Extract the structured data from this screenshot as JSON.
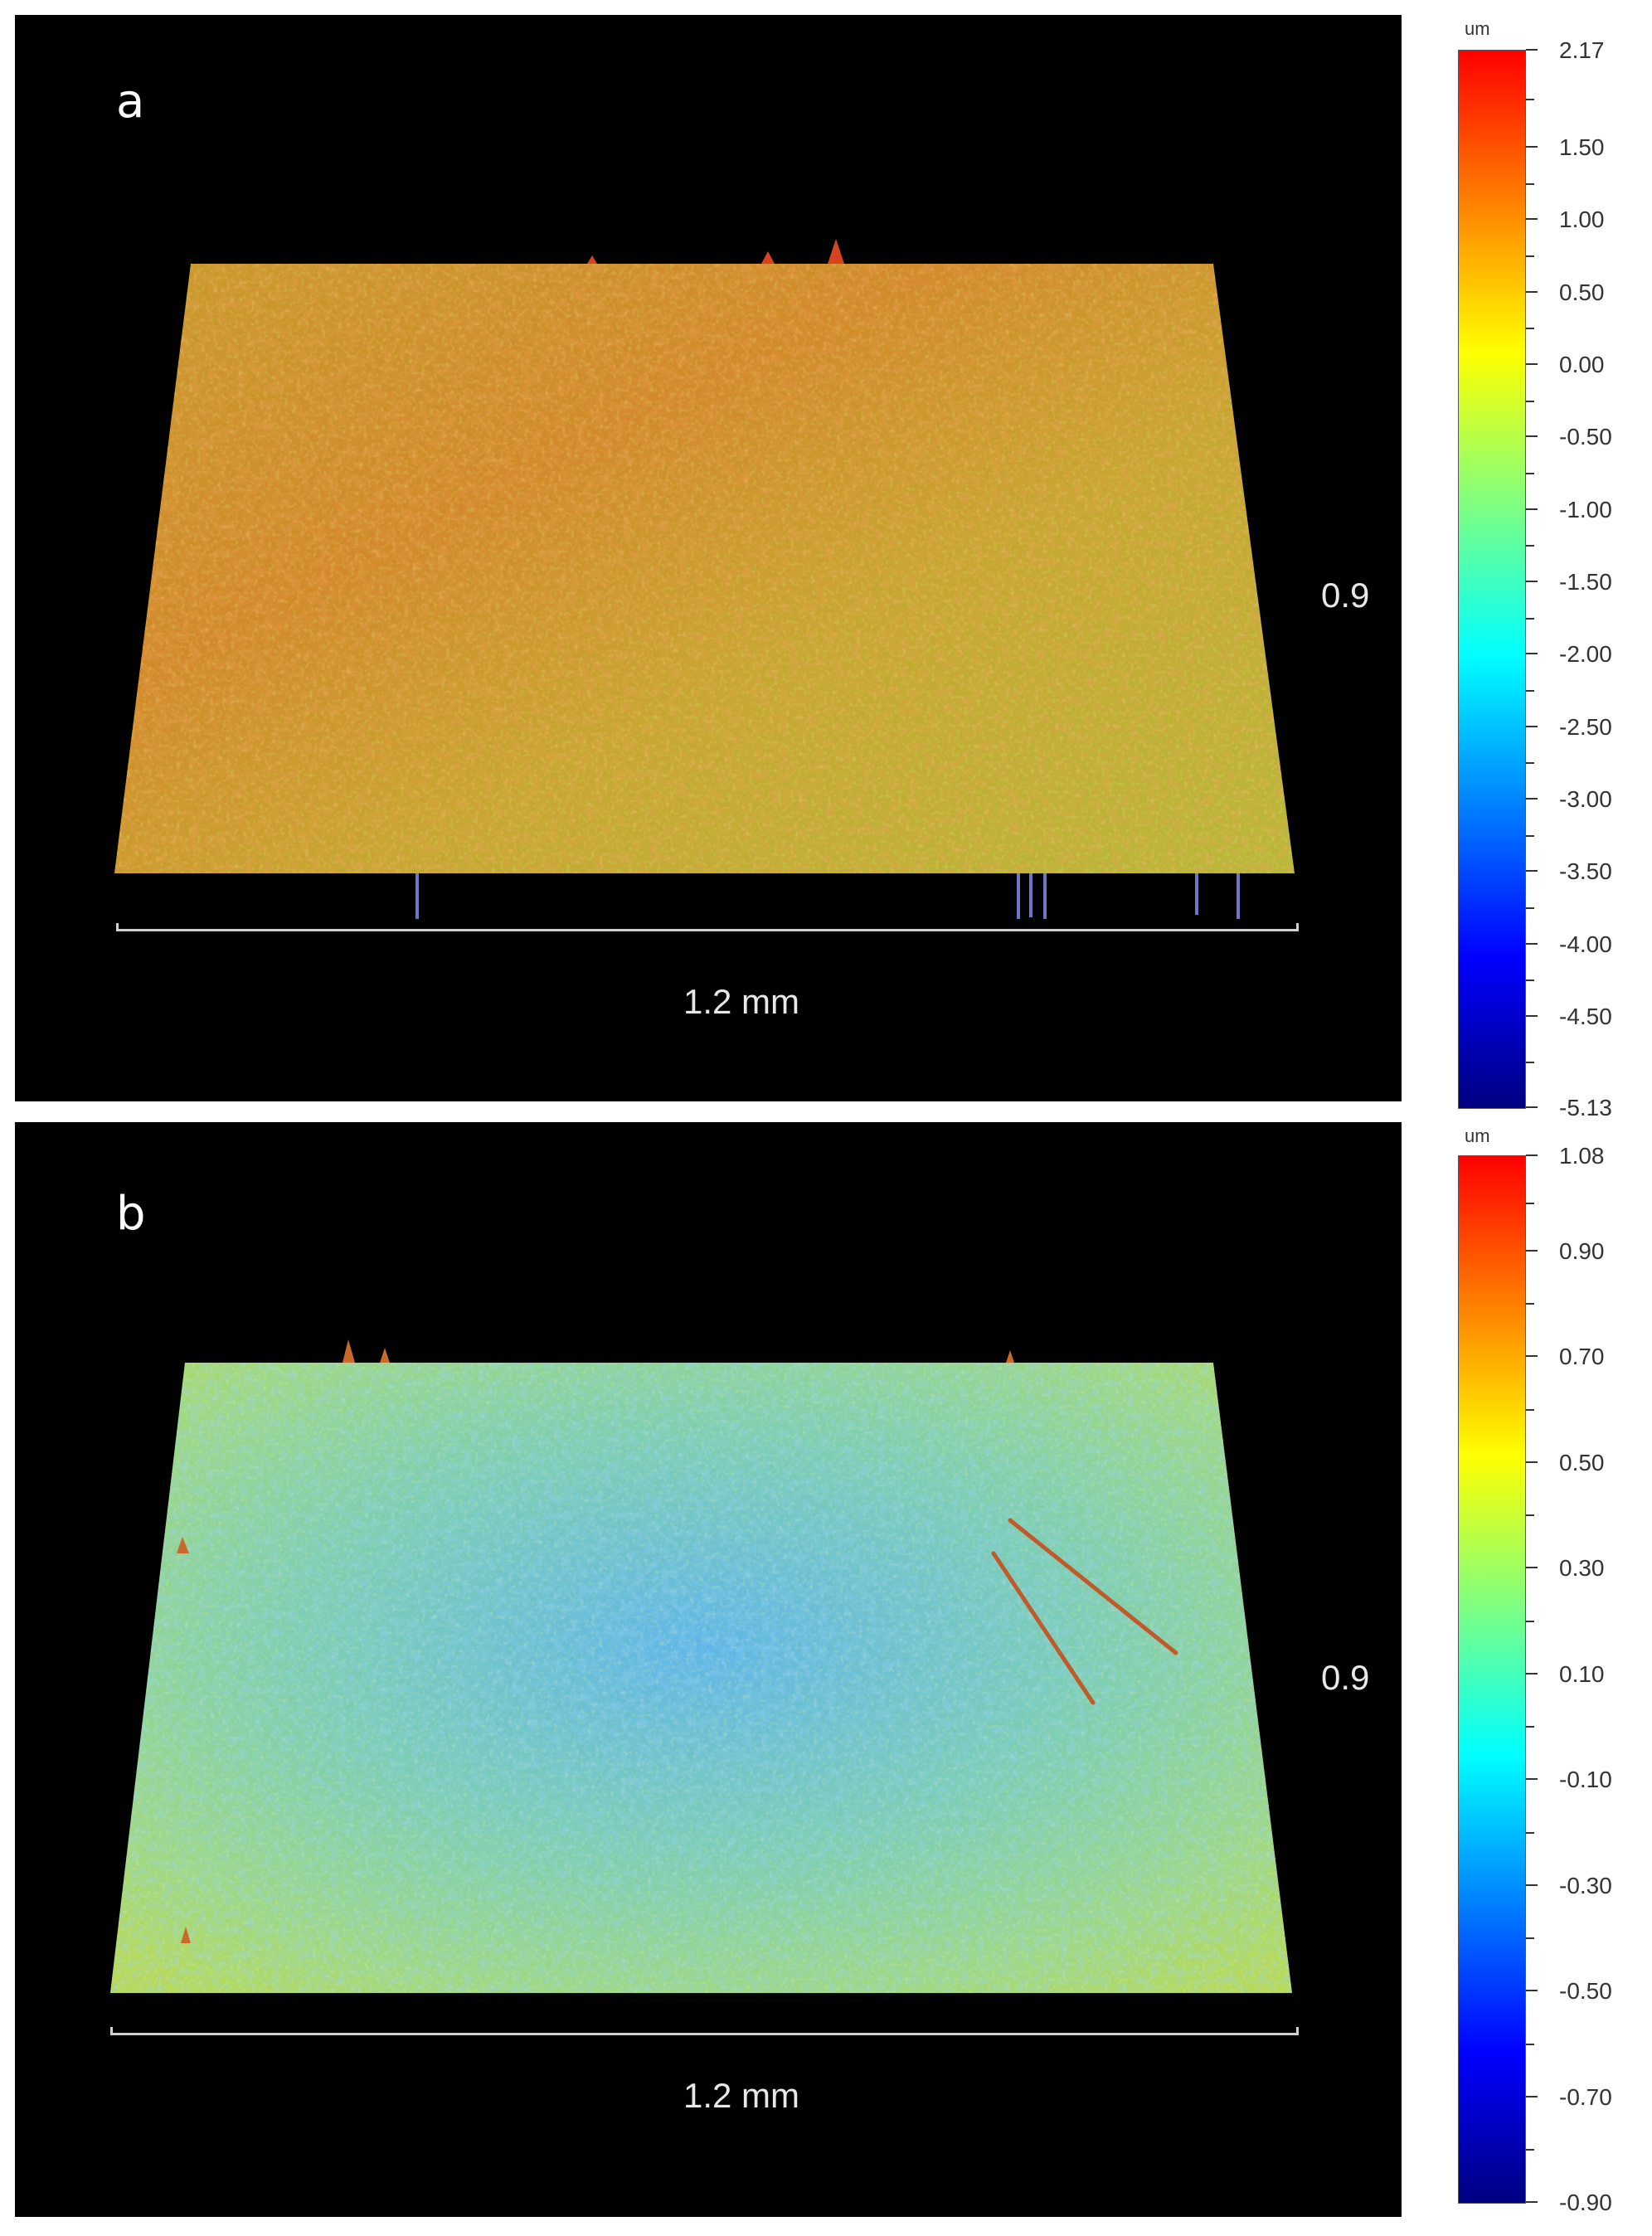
{
  "panel_a": {
    "letter": "a",
    "x_dim": "1.2 mm",
    "y_dim": "0.9",
    "colorbar": {
      "unit": "um",
      "labels": [
        "2.17",
        "1.50",
        "1.00",
        "0.50",
        "0.00",
        "-0.50",
        "-1.00",
        "-1.50",
        "-2.00",
        "-2.50",
        "-3.00",
        "-3.50",
        "-4.00",
        "-4.50",
        "-5.13"
      ],
      "values": [
        2.17,
        1.5,
        1.0,
        0.5,
        0.0,
        -0.5,
        -1.0,
        -1.5,
        -2.0,
        -2.5,
        -3.0,
        -3.5,
        -4.0,
        -4.5,
        -5.13
      ],
      "max": 2.17,
      "min": -5.13
    },
    "surface_colors": {
      "base": "#c8a234",
      "highlight": "#d96a28",
      "shade": "#a8c23a"
    }
  },
  "panel_b": {
    "letter": "b",
    "x_dim": "1.2 mm",
    "y_dim": "0.9",
    "colorbar": {
      "unit": "um",
      "labels": [
        "1.08",
        "0.90",
        "0.70",
        "0.50",
        "0.30",
        "0.10",
        "-0.10",
        "-0.30",
        "-0.50",
        "-0.70",
        "-0.90"
      ],
      "values": [
        1.08,
        0.9,
        0.7,
        0.5,
        0.3,
        0.1,
        -0.1,
        -0.3,
        -0.5,
        -0.7,
        -0.9
      ],
      "max": 1.08,
      "min": -0.9
    },
    "surface_colors": {
      "base": "#7fd59a",
      "highlight": "#6fb3e6",
      "shade": "#c3d84a"
    }
  },
  "colormap": [
    "#000080",
    "#0000ff",
    "#0080ff",
    "#00ffff",
    "#80ff80",
    "#ffff00",
    "#ff8000",
    "#ff0000"
  ]
}
